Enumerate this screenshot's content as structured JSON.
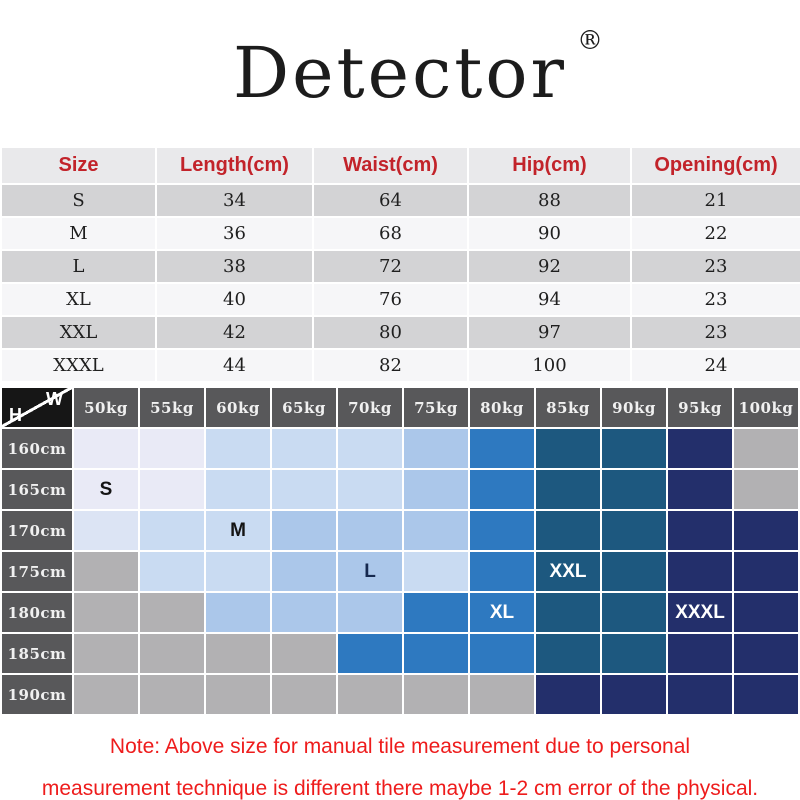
{
  "brand": {
    "name": "Detector",
    "registered_mark": "®"
  },
  "chart_data": [
    {
      "type": "table",
      "name": "garment-measurements",
      "columns": [
        "Size",
        "Length(cm)",
        "Waist(cm)",
        "Hip(cm)",
        "Opening(cm)"
      ],
      "rows": [
        [
          "S",
          34,
          64,
          88,
          21
        ],
        [
          "M",
          36,
          68,
          90,
          22
        ],
        [
          "L",
          38,
          72,
          92,
          23
        ],
        [
          "XL",
          40,
          76,
          94,
          23
        ],
        [
          "XXL",
          42,
          80,
          97,
          23
        ],
        [
          "XXXL",
          44,
          82,
          100,
          24
        ]
      ]
    },
    {
      "type": "heatmap",
      "name": "size-recommendation-by-height-weight",
      "corner_labels": {
        "top_right": "W",
        "bottom_left": "H"
      },
      "x_labels": [
        "50kg",
        "55kg",
        "60kg",
        "65kg",
        "70kg",
        "75kg",
        "80kg",
        "85kg",
        "90kg",
        "95kg",
        "100kg"
      ],
      "y_labels": [
        "160cm",
        "165cm",
        "170cm",
        "175cm",
        "180cm",
        "185cm",
        "190cm"
      ],
      "palette": {
        "p0": "#e9eaf6",
        "p1": "#dce4f4",
        "p2": "#c9dbf2",
        "p3": "#abc7ea",
        "mb": "#2e79c0",
        "db": "#1d587f",
        "nv": "#232f6b",
        "gr": "#b2b1b3"
      },
      "cells": [
        [
          "p0",
          "p0",
          "p2",
          "p2",
          "p2",
          "p3",
          "mb",
          "db",
          "db",
          "nv",
          "gr"
        ],
        [
          "p0",
          "p0",
          "p2",
          "p2",
          "p2",
          "p3",
          "mb",
          "db",
          "db",
          "nv",
          "gr"
        ],
        [
          "p1",
          "p2",
          "p2",
          "p3",
          "p3",
          "p3",
          "mb",
          "db",
          "db",
          "nv",
          "nv"
        ],
        [
          "gr",
          "p2",
          "p2",
          "p3",
          "p3",
          "p2",
          "mb",
          "db",
          "db",
          "nv",
          "nv"
        ],
        [
          "gr",
          "gr",
          "p3",
          "p3",
          "p3",
          "mb",
          "mb",
          "db",
          "db",
          "nv",
          "nv"
        ],
        [
          "gr",
          "gr",
          "gr",
          "gr",
          "mb",
          "mb",
          "mb",
          "db",
          "db",
          "nv",
          "nv"
        ],
        [
          "gr",
          "gr",
          "gr",
          "gr",
          "gr",
          "gr",
          "gr",
          "nv",
          "nv",
          "nv",
          "nv"
        ]
      ],
      "cell_labels": [
        {
          "y": "165cm",
          "x": "50kg",
          "text": "S",
          "color": "#141414"
        },
        {
          "y": "170cm",
          "x": "60kg",
          "text": "M",
          "color": "#141414"
        },
        {
          "y": "175cm",
          "x": "70kg",
          "text": "L",
          "color": "#16294f"
        },
        {
          "y": "175cm",
          "x": "85kg",
          "text": "XXL",
          "color": "#ffffff"
        },
        {
          "y": "180cm",
          "x": "80kg",
          "text": "XL",
          "color": "#ffffff"
        },
        {
          "y": "180cm",
          "x": "95kg",
          "text": "XXXL",
          "color": "#ffffff"
        }
      ]
    }
  ],
  "note": {
    "line1": "Note: Above size for manual tile measurement due to personal",
    "line2": "measurement technique is different there maybe 1-2 cm error of the physical.",
    "color": "#ee1c1c"
  },
  "style": {
    "accent_red": "#c2232a",
    "table_header_bg": "#e9e9eb",
    "table_row_bg_dark": "#d3d3d5",
    "table_row_bg_light": "#f6f6f8",
    "matrix_header_bg": "#58585a"
  }
}
